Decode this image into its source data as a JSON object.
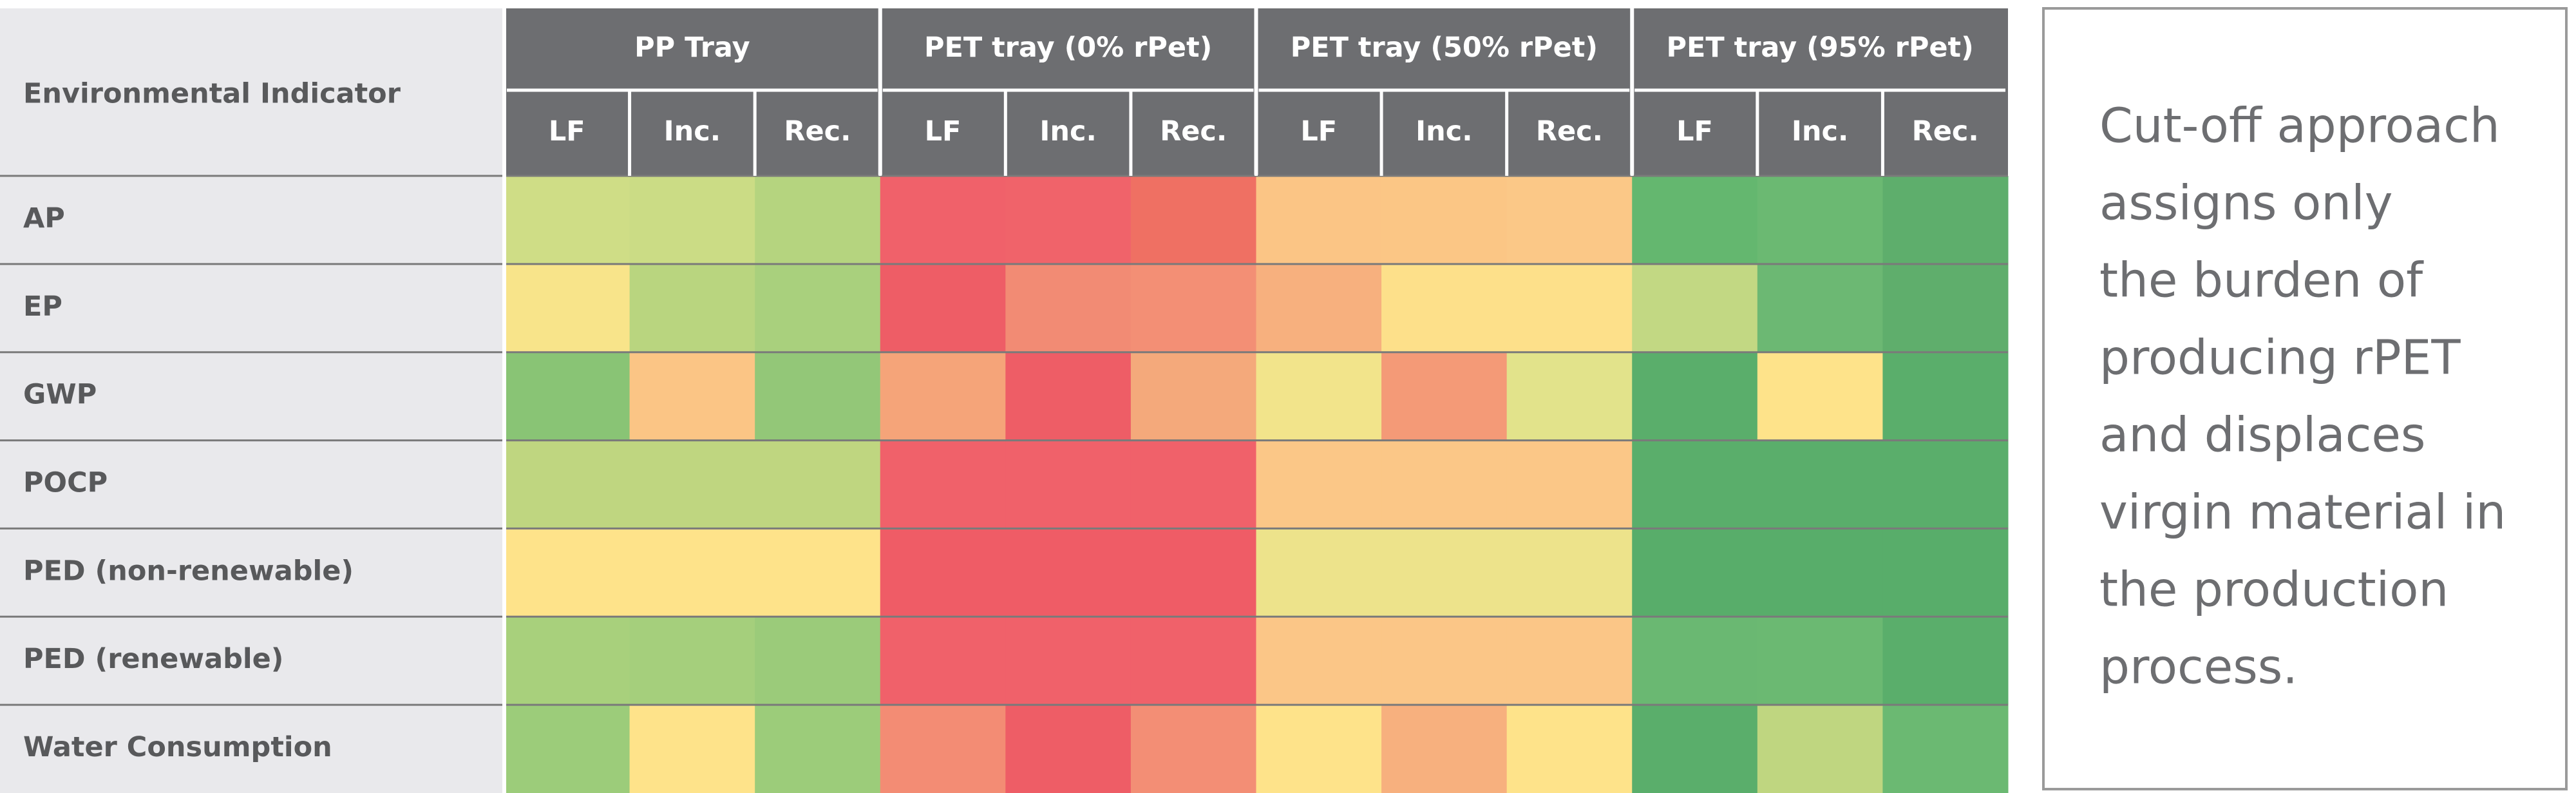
{
  "table": {
    "corner": "Environmental Indicator",
    "groups": [
      {
        "name": "PP Tray",
        "columns": [
          "LF",
          "Inc.",
          "Rec."
        ]
      },
      {
        "name": "PET tray (0% rPet)",
        "columns": [
          "LF",
          "Inc.",
          "Rec."
        ]
      },
      {
        "name": "PET tray (50% rPet)",
        "columns": [
          "LF",
          "Inc.",
          "Rec."
        ]
      },
      {
        "name": "PET tray (95% rPet)",
        "columns": [
          "LF",
          "Inc.",
          "Rec."
        ]
      }
    ],
    "rows": [
      {
        "label": "AP",
        "colors": [
          "#cfdd86",
          "#cbdc85",
          "#b5d47f",
          "#f0616a",
          "#f0636a",
          "#ef7063",
          "#fbc585",
          "#fbc685",
          "#fbc887",
          "#64b76f",
          "#6bb972",
          "#5eae6c"
        ]
      },
      {
        "label": "EP",
        "colors": [
          "#f8e48a",
          "#b9d57f",
          "#a9d07d",
          "#ee5d66",
          "#f28b74",
          "#f38f75",
          "#f7b07e",
          "#fde08a",
          "#fde08a",
          "#c2d883",
          "#6cb873",
          "#5fae6c"
        ]
      },
      {
        "label": "GWP",
        "colors": [
          "#89c475",
          "#fbc585",
          "#93c778",
          "#f5a479",
          "#ee5d66",
          "#f4a97b",
          "#f2e48b",
          "#f49a77",
          "#e2e38b",
          "#5aae6b",
          "#fee38a",
          "#5aae6b"
        ]
      },
      {
        "label": "POCP",
        "colors": [
          "#bfd680",
          "#bfd680",
          "#bfd680",
          "#f0616a",
          "#f0616a",
          "#f0616a",
          "#fbc787",
          "#fbc787",
          "#fbc787",
          "#5aae6b",
          "#5aae6b",
          "#5aae6b"
        ]
      },
      {
        "label": "PED (non-renewable)",
        "colors": [
          "#fee38a",
          "#fee38a",
          "#fee38a",
          "#ef5c66",
          "#ef5c66",
          "#ef5c66",
          "#ede38b",
          "#ede38b",
          "#ede38b",
          "#58ad6a",
          "#58ad6a",
          "#58ad6a"
        ]
      },
      {
        "label": "PED (renewable)",
        "colors": [
          "#a8d07c",
          "#a5cf7c",
          "#9bcb7a",
          "#f0616a",
          "#f0616a",
          "#f0616a",
          "#fbc687",
          "#fbc687",
          "#fbc687",
          "#6ab872",
          "#6bb972",
          "#5aae6b"
        ]
      },
      {
        "label": "Water Consumption",
        "colors": [
          "#9ccc7a",
          "#fee38a",
          "#9ccc7a",
          "#f38c74",
          "#ee5d66",
          "#f38e75",
          "#fee38a",
          "#f7b07e",
          "#fee38a",
          "#5aae6b",
          "#bfd680",
          "#6bb972"
        ]
      }
    ]
  },
  "note": {
    "lines": [
      "Cut-off approach",
      "assigns only",
      "the burden of",
      "producing rPET",
      "and displaces",
      "virgin material in",
      "the production",
      "process."
    ]
  }
}
